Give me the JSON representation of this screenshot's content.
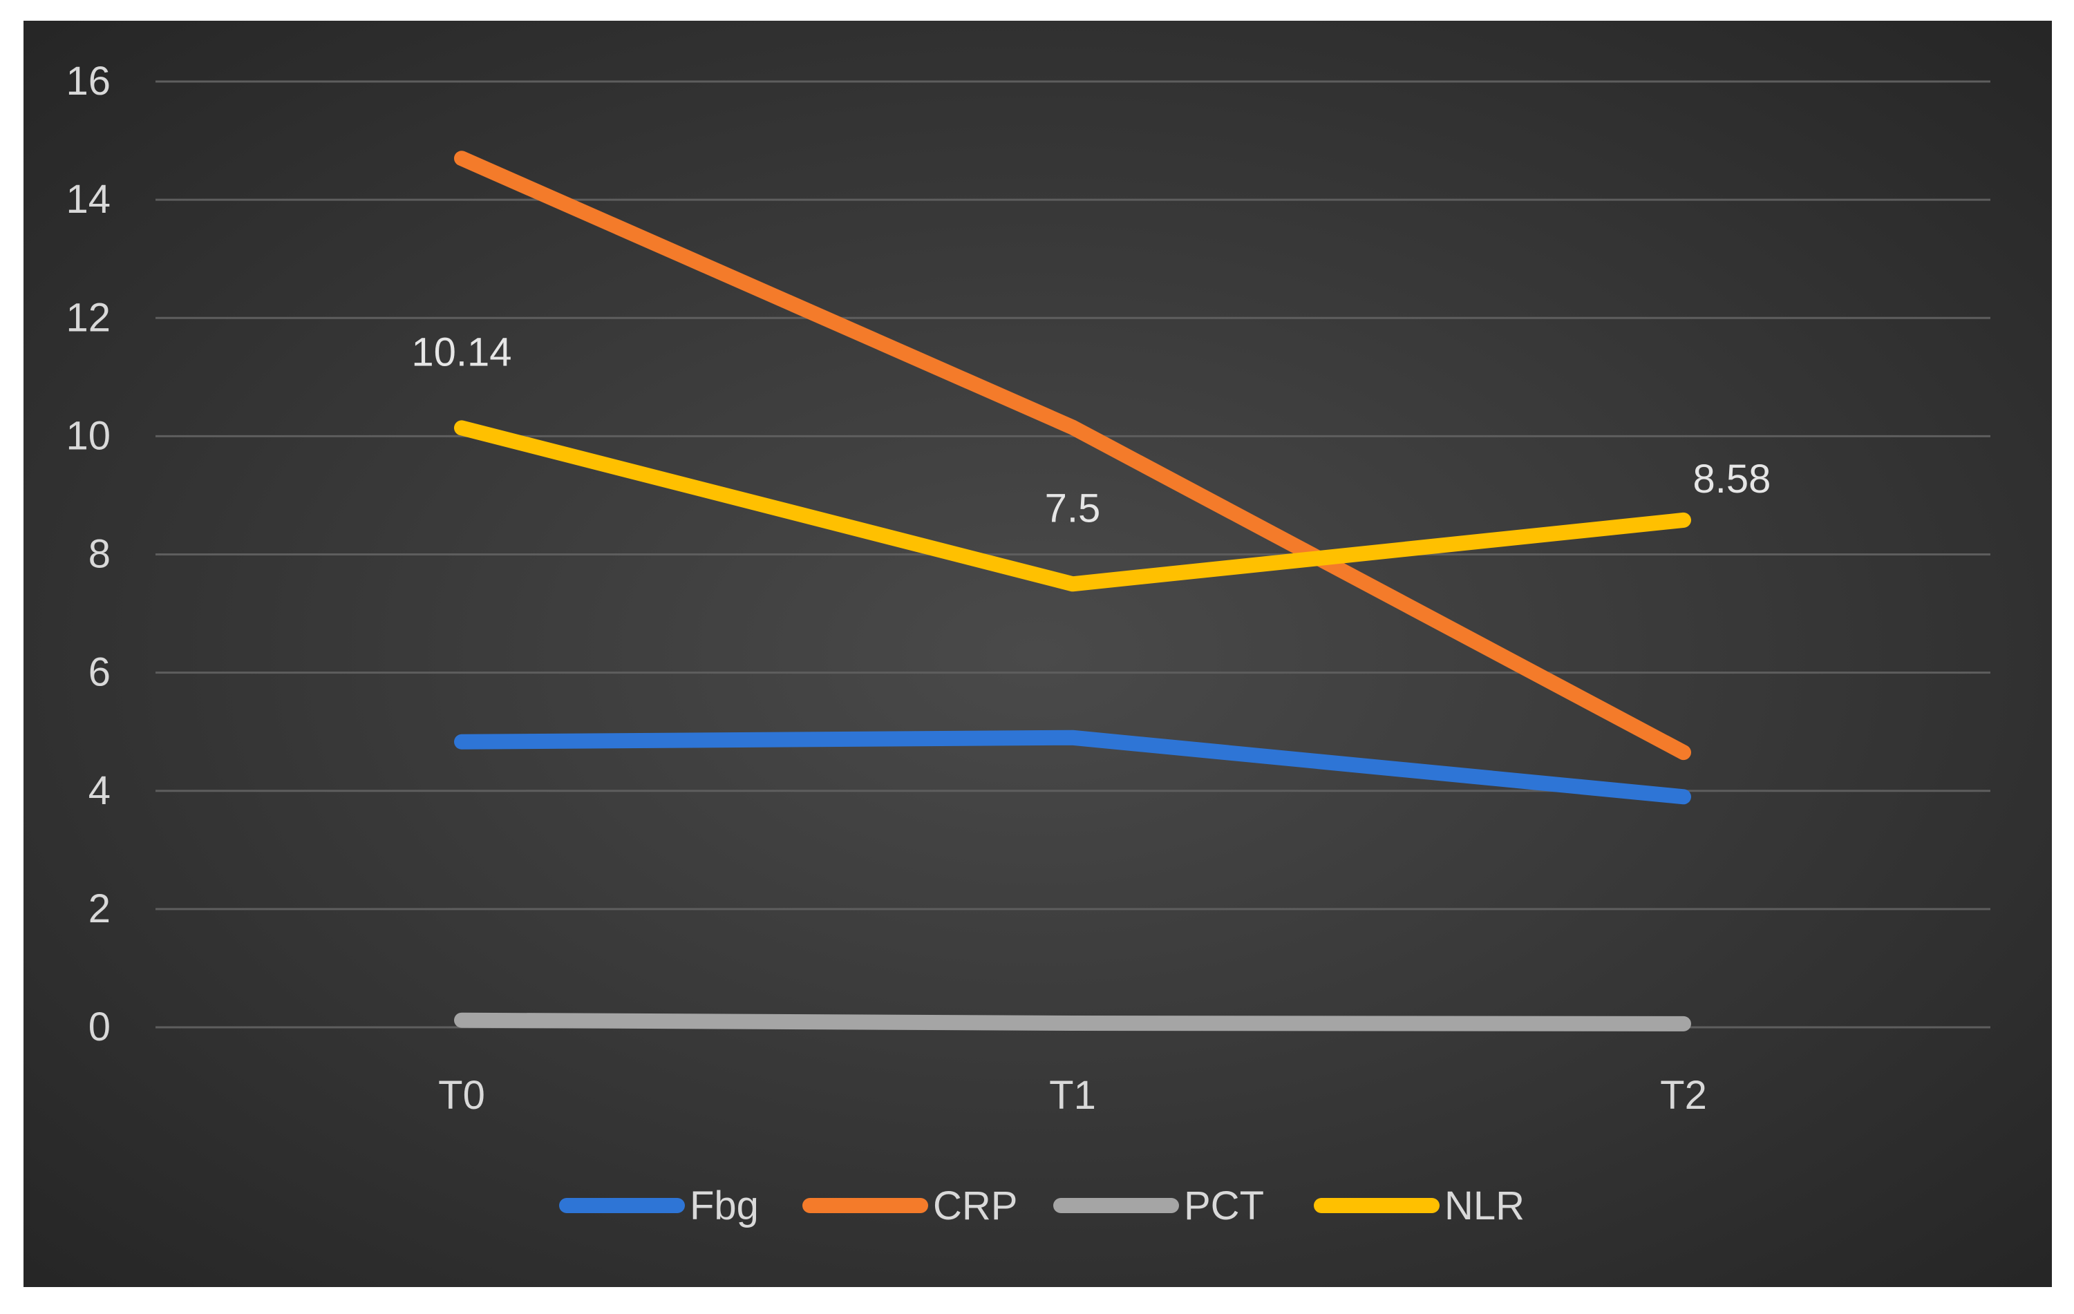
{
  "chart_data": {
    "type": "line",
    "title": "",
    "xlabel": "",
    "ylabel": "",
    "categories": [
      "T0",
      "T1",
      "T2"
    ],
    "ylim": [
      0,
      16
    ],
    "yticks": [
      0,
      2,
      4,
      6,
      8,
      10,
      12,
      14,
      16
    ],
    "grid": true,
    "legend_position": "bottom",
    "series": [
      {
        "name": "Fbg",
        "color": "#2E75D6",
        "values": [
          4.83,
          4.9,
          3.9
        ]
      },
      {
        "name": "CRP",
        "color": "#F47B2A",
        "values": [
          14.7,
          10.15,
          4.65
        ]
      },
      {
        "name": "PCT",
        "color": "#A5A5A5",
        "values": [
          0.12,
          0.07,
          0.06
        ]
      },
      {
        "name": "NLR",
        "color": "#FFC000",
        "values": [
          10.14,
          7.5,
          8.58
        ]
      }
    ],
    "data_labels": [
      {
        "series": "NLR",
        "category": "T0",
        "text": "10.14"
      },
      {
        "series": "NLR",
        "category": "T1",
        "text": "7.5"
      },
      {
        "series": "NLR",
        "category": "T2",
        "text": "8.58"
      }
    ]
  }
}
